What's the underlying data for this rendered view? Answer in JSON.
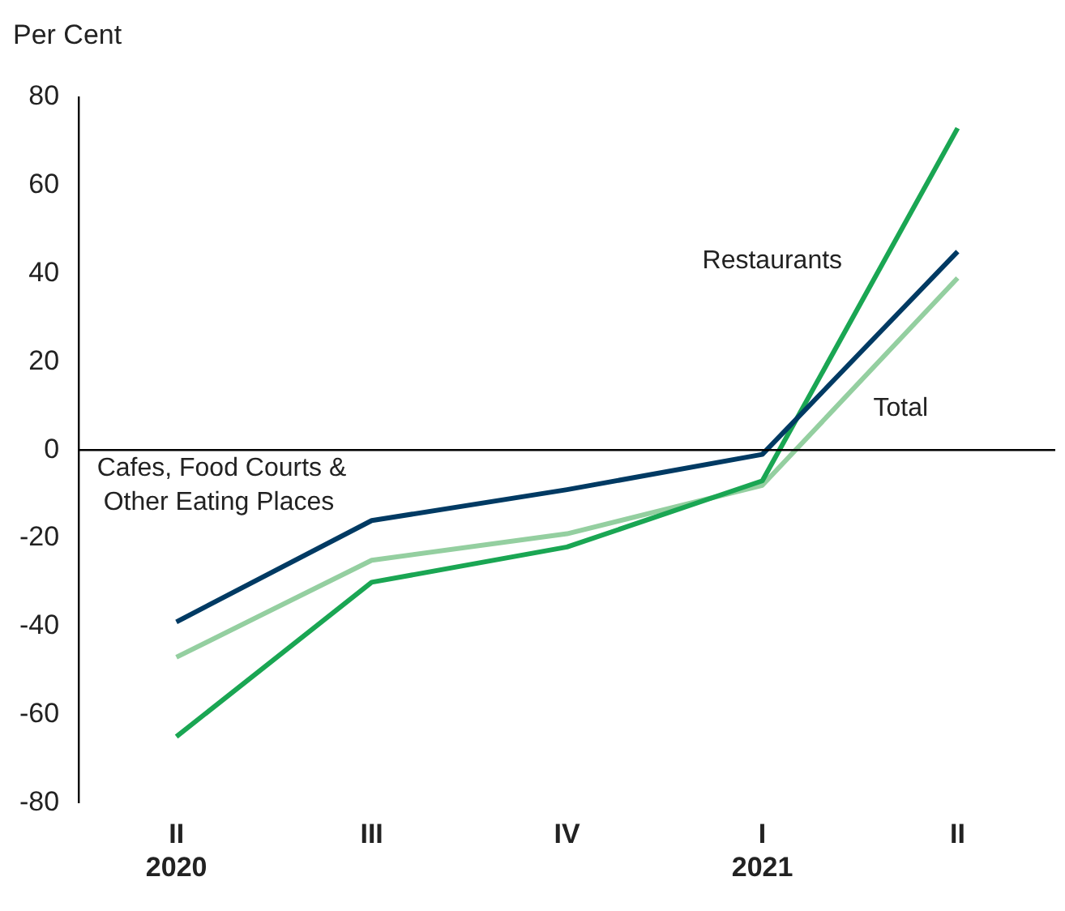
{
  "chart_data": {
    "type": "line",
    "ylabel": "Per Cent",
    "categories": [
      "II\n2020",
      "III",
      "IV",
      "I\n2021",
      "II"
    ],
    "series": [
      {
        "name": "Cafes, Food Courts &\nOther Eating Places",
        "color": "#003a63",
        "values": [
          -39,
          -16,
          -9,
          -1,
          45
        ]
      },
      {
        "name": "Restaurants",
        "color": "#1aa653",
        "values": [
          -65,
          -30,
          -22,
          -7,
          73
        ]
      },
      {
        "name": "Total",
        "color": "#94cfa0",
        "values": [
          -47,
          -25,
          -19,
          -8,
          39
        ]
      }
    ],
    "ylim": [
      -80,
      80
    ],
    "yticks": [
      -80,
      -60,
      -40,
      -20,
      0,
      20,
      40,
      60,
      80
    ],
    "ref_lines": [
      {
        "axis": "y",
        "value": 0,
        "color": "#000000"
      }
    ],
    "grid": false,
    "legend": false,
    "marker": "none",
    "line_style": "solid"
  }
}
